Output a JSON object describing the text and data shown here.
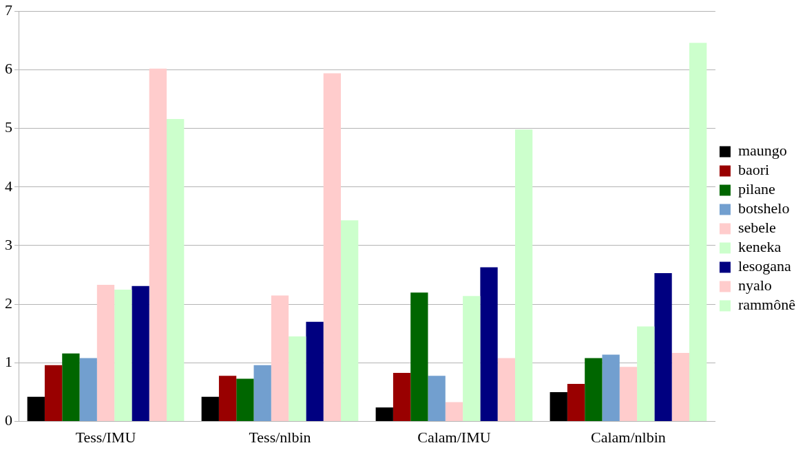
{
  "chart_data": {
    "type": "bar",
    "categories": [
      "Tess/IMU",
      "Tess/nlbin",
      "Calam/IMU",
      "Calam/nlbin"
    ],
    "series": [
      {
        "name": "maungo",
        "color": "#000000",
        "values": [
          0.42,
          0.42,
          0.24,
          0.5
        ]
      },
      {
        "name": "baori",
        "color": "#990000",
        "values": [
          0.96,
          0.78,
          0.83,
          0.64
        ]
      },
      {
        "name": "pilane",
        "color": "#006600",
        "values": [
          1.16,
          0.73,
          2.2,
          1.08
        ]
      },
      {
        "name": "botshelo",
        "color": "#729fcf",
        "values": [
          1.08,
          0.96,
          0.78,
          1.14
        ]
      },
      {
        "name": "sebele",
        "color": "#ffcccc",
        "values": [
          2.33,
          2.15,
          0.33,
          0.93
        ]
      },
      {
        "name": "keneka",
        "color": "#ccffcc",
        "values": [
          2.25,
          1.45,
          2.14,
          1.62
        ]
      },
      {
        "name": "lesogana",
        "color": "#000080",
        "values": [
          2.31,
          1.7,
          2.63,
          2.53
        ]
      },
      {
        "name": "nyalo",
        "color": "#ffcccc",
        "values": [
          6.02,
          5.94,
          1.08,
          1.17
        ]
      },
      {
        "name": "rammônê",
        "color": "#ccffcc",
        "values": [
          5.16,
          3.43,
          4.98,
          6.46
        ]
      }
    ],
    "ylim": [
      0,
      7
    ],
    "yticks": [
      0,
      1,
      2,
      3,
      4,
      5,
      6,
      7
    ],
    "grid": "y",
    "legend": "right"
  }
}
